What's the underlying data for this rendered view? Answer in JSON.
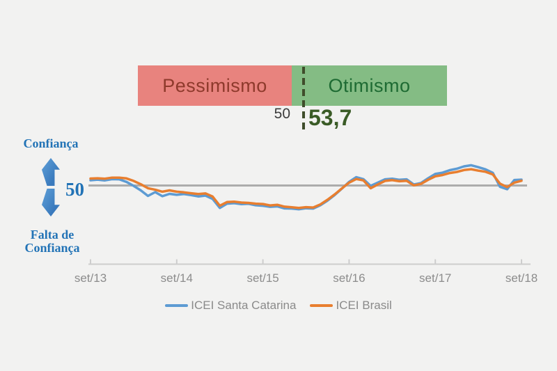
{
  "gauge": {
    "pessimism_label": "Pessimismo",
    "optimism_label": "Otimismo",
    "threshold_label": "50",
    "current_value_label": "53,7",
    "scale": {
      "min": 0,
      "max": 100,
      "threshold": 50,
      "value": 53.7
    },
    "colors": {
      "pessimism_bg": "#e8837e",
      "pessimism_text": "#8e3a2c",
      "optimism_bg": "#84bc84",
      "optimism_text": "#1e6b33",
      "value_text": "#3a5b26",
      "dash": "#3f4d2b"
    }
  },
  "axis_annotation": {
    "top_label": "Confiança",
    "midpoint_label": "50",
    "bottom_label_line1": "Falta de",
    "bottom_label_line2": "Confiança",
    "text_color": "#2273b6",
    "arrow_color": "#3f80c4"
  },
  "chart_data": {
    "type": "line",
    "x_unit": "month",
    "x_start_label": "set/13",
    "x_end_label": "set/18",
    "x_tick_labels": [
      "set/13",
      "set/14",
      "set/15",
      "set/16",
      "set/17",
      "set/18"
    ],
    "months_per_tick": 12,
    "baseline": 50,
    "baseline_color": "#acacac",
    "ylim": [
      33,
      65
    ],
    "grid": "off",
    "legend_position": "bottom",
    "series": [
      {
        "name": "ICEI Santa Catarina",
        "color": "#5d9bd3",
        "values": [
          53.3,
          53.7,
          53.2,
          54.0,
          53.9,
          52.3,
          49.8,
          46.9,
          43.4,
          45.8,
          43.2,
          44.7,
          44.1,
          44.6,
          43.9,
          43.1,
          43.6,
          41.5,
          35.8,
          38.5,
          38.8,
          38.2,
          38.4,
          37.5,
          37.2,
          36.5,
          36.8,
          35.5,
          35.4,
          35.0,
          35.6,
          35.4,
          37.5,
          40.5,
          44.0,
          48.0,
          52.3,
          55.3,
          54.0,
          49.8,
          51.8,
          53.9,
          54.3,
          53.6,
          53.9,
          50.6,
          51.6,
          54.6,
          57.3,
          58.1,
          59.7,
          60.6,
          62.1,
          62.8,
          61.6,
          60.2,
          58.0,
          49.2,
          47.6,
          53.5,
          53.7
        ]
      },
      {
        "name": "ICEI Brasil",
        "color": "#e87e2f",
        "values": [
          54.4,
          54.6,
          54.3,
          55.0,
          55.0,
          54.5,
          52.9,
          50.8,
          48.3,
          47.3,
          46.1,
          46.9,
          46.1,
          45.7,
          45.1,
          44.6,
          45.0,
          43.0,
          37.2,
          39.5,
          39.8,
          39.2,
          39.0,
          38.5,
          38.3,
          37.4,
          37.8,
          36.6,
          36.2,
          35.8,
          36.3,
          36.1,
          38.0,
          41.0,
          44.4,
          48.2,
          51.8,
          54.1,
          53.2,
          48.3,
          50.7,
          52.9,
          53.4,
          52.7,
          53.0,
          50.1,
          51.0,
          53.6,
          55.8,
          56.6,
          57.9,
          58.6,
          59.8,
          60.3,
          59.4,
          58.7,
          57.0,
          51.2,
          49.0,
          51.8,
          53.0
        ]
      }
    ]
  },
  "legend": {
    "items": [
      {
        "label": "ICEI Santa Catarina",
        "color": "#5d9bd3"
      },
      {
        "label": "ICEI Brasil",
        "color": "#e87e2f"
      }
    ]
  }
}
